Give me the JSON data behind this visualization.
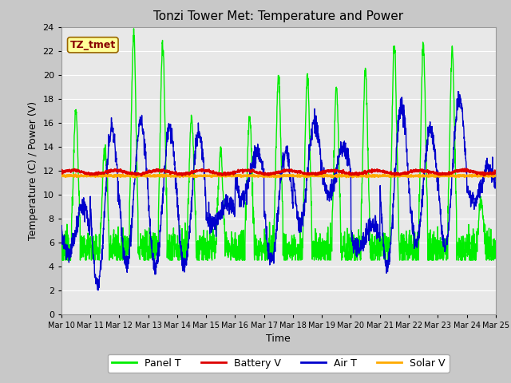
{
  "title": "Tonzi Tower Met: Temperature and Power",
  "xlabel": "Time",
  "ylabel": "Temperature (C) / Power (V)",
  "ylim": [
    0,
    24
  ],
  "yticks": [
    0,
    2,
    4,
    6,
    8,
    10,
    12,
    14,
    16,
    18,
    20,
    22,
    24
  ],
  "xtick_labels": [
    "Mar 10",
    "Mar 11",
    "Mar 12",
    "Mar 13",
    "Mar 14",
    "Mar 15",
    "Mar 16",
    "Mar 17",
    "Mar 18",
    "Mar 19",
    "Mar 20",
    "Mar 21",
    "Mar 22",
    "Mar 23",
    "Mar 24",
    "Mar 25"
  ],
  "plot_bg_color": "#e8e8e8",
  "fig_bg_color": "#c8c8c8",
  "panel_color": "#00ee00",
  "battery_color": "#dd0000",
  "air_color": "#0000cc",
  "solar_color": "#ffaa00",
  "label_box_facecolor": "#ffff99",
  "label_box_edgecolor": "#996600",
  "label_text": "TZ_tmet",
  "label_text_color": "#880000",
  "legend_labels": [
    "Panel T",
    "Battery V",
    "Air T",
    "Solar V"
  ],
  "grid_color": "#ffffff",
  "spine_color": "#999999"
}
